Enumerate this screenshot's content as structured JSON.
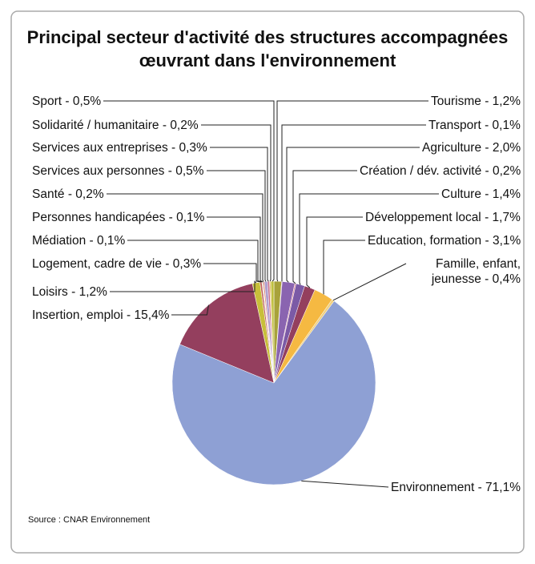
{
  "chart_data": {
    "type": "pie",
    "title": "Principal secteur d'activité des structures accompagnées œuvrant dans l'environnement",
    "source": "Source : CNAR  Environnement",
    "label_separator": " - ",
    "categories": [
      "Tourisme",
      "Transport",
      "Agriculture",
      "Création / dév. activité",
      "Culture",
      "Développement local",
      "Education, formation",
      "Famille, enfant, jeunesse",
      "Environnement",
      "Insertion, emploi",
      "Loisirs",
      "Logement, cadre de vie",
      "Médiation",
      "Personnes handicapées",
      "Santé",
      "Services aux personnes",
      "Services aux entreprises",
      "Solidarité / humanitaire",
      "Sport"
    ],
    "values": [
      1.2,
      0.1,
      2.0,
      0.2,
      1.4,
      1.7,
      3.1,
      0.4,
      71.1,
      15.4,
      1.2,
      0.3,
      0.1,
      0.1,
      0.2,
      0.5,
      0.3,
      0.2,
      0.5
    ],
    "value_labels": [
      "1,2%",
      "0,1%",
      "2,0%",
      "0,2%",
      "1,4%",
      "1,7%",
      "3,1%",
      "0,4%",
      "71,1%",
      "15,4%",
      "1,2%",
      "0,3%",
      "0,1%",
      "0,1%",
      "0,2%",
      "0,5%",
      "0,3%",
      "0,2%",
      "0,5%"
    ],
    "colors": [
      "#a8a23a",
      "#b56a8a",
      "#8a64b0",
      "#d98a9a",
      "#7b5aa6",
      "#943f5e",
      "#f5b942",
      "#f0d080",
      "#8ea0d4",
      "#943f5e",
      "#c8bf3a",
      "#c06060",
      "#d0a040",
      "#9a7ab8",
      "#e08a6a",
      "#b0a0d0",
      "#c87090",
      "#e6c060",
      "#c0c040"
    ]
  }
}
